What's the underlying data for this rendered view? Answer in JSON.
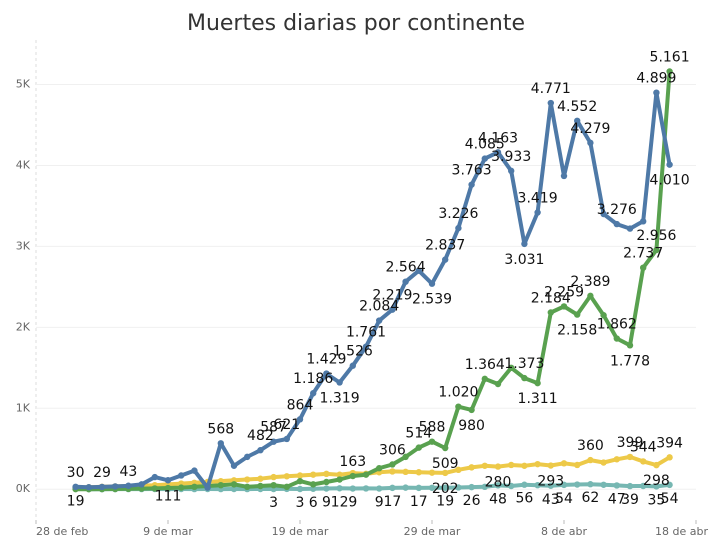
{
  "chart_data": {
    "type": "line",
    "title": "Muertes diarias por continente",
    "categories": [
      "28 de feb",
      null,
      null,
      null,
      null,
      null,
      null,
      null,
      null,
      null,
      "9 de mar",
      null,
      null,
      null,
      null,
      null,
      null,
      null,
      null,
      null,
      "19 de mar",
      null,
      null,
      null,
      null,
      null,
      null,
      null,
      null,
      null,
      "29 de mar",
      null,
      null,
      null,
      null,
      null,
      null,
      null,
      null,
      null,
      "8 de abr",
      null,
      null,
      null,
      null,
      null,
      null,
      null,
      null,
      null,
      "18 de abr"
    ],
    "ylim": [
      -380,
      5550
    ],
    "yticks": [
      {
        "value": 0,
        "label": "0K"
      },
      {
        "value": 1000,
        "label": "1K"
      },
      {
        "value": 2000,
        "label": "2K"
      },
      {
        "value": 3000,
        "label": "3K"
      },
      {
        "value": 4000,
        "label": "4K"
      },
      {
        "value": 5000,
        "label": "5K"
      }
    ],
    "series": [
      {
        "color": "#4e79a7",
        "values": [
          null,
          null,
          null,
          30,
          25,
          29,
          35,
          43,
          60,
          150,
          111,
          170,
          230,
          20,
          568,
          290,
          400,
          482,
          587,
          621,
          864,
          1186,
          1429,
          1319,
          1526,
          1761,
          2084,
          2219,
          2564,
          2700,
          2539,
          2837,
          3226,
          3763,
          4085,
          4163,
          3933,
          3031,
          3419,
          4771,
          3870,
          4552,
          4279,
          3400,
          3276,
          3220,
          3310,
          4899,
          4010,
          null,
          null
        ],
        "value_labels": [
          null,
          null,
          null,
          "30",
          null,
          "29",
          null,
          "43",
          null,
          null,
          "111",
          null,
          null,
          null,
          "568",
          null,
          null,
          "482",
          "587",
          "621",
          "864",
          "1.186",
          "1.429",
          "1.319",
          "1.526",
          "1.761",
          "2.084",
          "2.219",
          "2.564",
          null,
          "2.539",
          "2.837",
          "3.226",
          "3.763",
          "4.085",
          "4.163",
          "3.933",
          "3.031",
          "3.419",
          "4.771",
          null,
          "4.552",
          "4.279",
          null,
          "3.276",
          null,
          null,
          "4.899",
          "4.010",
          null,
          null
        ]
      },
      {
        "color": "#59a14f",
        "values": [
          null,
          null,
          null,
          1,
          1,
          2,
          3,
          5,
          8,
          10,
          15,
          20,
          30,
          40,
          50,
          60,
          30,
          40,
          50,
          30,
          100,
          60,
          90,
          120,
          163,
          180,
          260,
          306,
          400,
          514,
          588,
          509,
          1020,
          980,
          1364,
          1300,
          1500,
          1373,
          1311,
          2184,
          2259,
          2158,
          2389,
          2150,
          1862,
          1778,
          2737,
          2956,
          5161,
          null,
          null
        ],
        "value_labels": [
          null,
          null,
          null,
          null,
          null,
          null,
          null,
          null,
          null,
          null,
          null,
          null,
          null,
          null,
          null,
          null,
          null,
          null,
          null,
          null,
          null,
          null,
          null,
          null,
          "163",
          null,
          null,
          "306",
          null,
          "514",
          "588",
          "509",
          "1.020",
          "980",
          "1.364",
          null,
          null,
          "1.373",
          "1.311",
          "2.184",
          "2.259",
          "2.158",
          "2.389",
          null,
          "1.862",
          "1.778",
          "2.737",
          "2.956",
          "5.161",
          null,
          null
        ]
      },
      {
        "color": "#edc948",
        "values": [
          null,
          null,
          null,
          20,
          25,
          30,
          35,
          40,
          45,
          50,
          60,
          70,
          80,
          90,
          100,
          110,
          120,
          130,
          150,
          160,
          170,
          180,
          190,
          180,
          200,
          190,
          210,
          220,
          215,
          210,
          205,
          202,
          240,
          270,
          290,
          280,
          300,
          290,
          310,
          293,
          320,
          300,
          360,
          330,
          370,
          399,
          344,
          298,
          394,
          null,
          null
        ],
        "value_labels": [
          null,
          null,
          null,
          null,
          null,
          null,
          null,
          null,
          null,
          null,
          null,
          null,
          null,
          null,
          null,
          null,
          null,
          null,
          null,
          null,
          null,
          null,
          null,
          null,
          null,
          null,
          null,
          null,
          null,
          null,
          null,
          "202",
          null,
          null,
          null,
          "280",
          null,
          null,
          null,
          "293",
          null,
          null,
          "360",
          null,
          null,
          "399",
          "344",
          "298",
          "394",
          null,
          null
        ]
      },
      {
        "color": "#76b7b2",
        "values": [
          null,
          null,
          null,
          19,
          1,
          1,
          2,
          2,
          2,
          3,
          2,
          3,
          2,
          3,
          2,
          3,
          2,
          3,
          3,
          4,
          3,
          6,
          9,
          12,
          9,
          10,
          9,
          17,
          20,
          17,
          18,
          19,
          22,
          26,
          30,
          48,
          40,
          56,
          50,
          43,
          54,
          58,
          62,
          55,
          47,
          39,
          40,
          35,
          54,
          null,
          null
        ],
        "value_labels": [
          null,
          null,
          null,
          "19",
          null,
          null,
          null,
          null,
          null,
          null,
          null,
          null,
          null,
          null,
          null,
          null,
          null,
          null,
          "3",
          null,
          "3",
          "6",
          "9",
          "12",
          "9",
          null,
          "9",
          "17",
          null,
          "17",
          null,
          "19",
          null,
          "26",
          null,
          "48",
          null,
          "56",
          null,
          "43",
          "54",
          null,
          "62",
          null,
          "47",
          "39",
          null,
          "35",
          "54",
          null,
          null
        ]
      }
    ]
  }
}
